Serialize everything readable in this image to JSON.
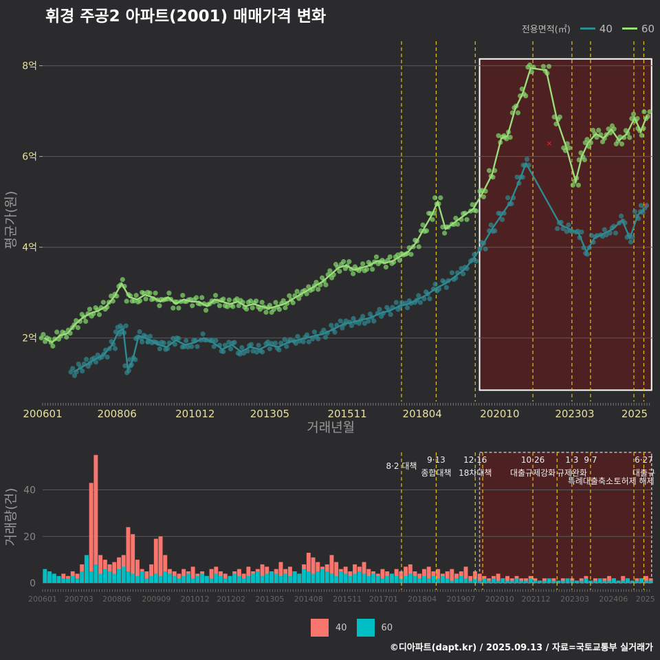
{
  "title": "휘경 주공2 아파트(2001) 매매가격 변화",
  "footer": "©디아파트(dapt.kr) / 2025.09.13 / 자료=국토교통부 실거래가",
  "legend_title": "전용면적(㎡)",
  "colors": {
    "series40_line": "#2f8a92",
    "series60_line": "#9cdc7a",
    "series40_point": "#2f8a92",
    "series60_point": "#86dc6e",
    "bar40": "#f8766d",
    "bar60": "#00bfc4",
    "policy_line": "#e8c21c",
    "grid": "#5a5a5a",
    "highlight_fill": "#5a1e1e",
    "highlight_border": "#ffffff"
  },
  "chart_data": [
    {
      "type": "line",
      "title": "휘경 주공2 아파트(2001) 매매가격 변화",
      "xlabel": "거래년월",
      "ylabel": "평균가(원)",
      "x_tick_labels": [
        "200601",
        "200806",
        "201012",
        "201305",
        "201511",
        "201804",
        "202010",
        "202303",
        "2025"
      ],
      "y_tick_labels": [
        "2억",
        "4억",
        "6억",
        "8억"
      ],
      "y_ticks": [
        2,
        4,
        6,
        8
      ],
      "ylim": [
        0.6,
        8.6
      ],
      "xlim": [
        2006.0,
        2025.7
      ],
      "y_unit": "억",
      "legend_placement": "top-right",
      "grid": true,
      "highlight_range": [
        2020.1,
        2025.65
      ],
      "policy_dates": [
        2017.58,
        2018.7,
        2019.96,
        2021.82,
        2023.08,
        2023.68,
        2025.08,
        2025.4
      ],
      "series": [
        {
          "name": "40",
          "x": [
            2007.0,
            2007.25,
            2007.5,
            2007.75,
            2008.0,
            2008.25,
            2008.45,
            2008.6,
            2008.75,
            2008.9,
            2009.1,
            2009.3,
            2009.5,
            2009.75,
            2010.0,
            2010.3,
            2010.6,
            2010.9,
            2011.2,
            2011.5,
            2011.8,
            2012.1,
            2012.4,
            2012.7,
            2013.0,
            2013.3,
            2013.6,
            2013.9,
            2014.2,
            2014.5,
            2014.8,
            2015.1,
            2015.4,
            2015.7,
            2016.0,
            2016.3,
            2016.6,
            2016.9,
            2017.2,
            2017.5,
            2017.8,
            2018.1,
            2018.4,
            2018.7,
            2019.0,
            2019.3,
            2019.6,
            2019.9,
            2020.2,
            2020.5,
            2020.8,
            2021.1,
            2021.4,
            2021.6,
            2022.7,
            2023.0,
            2023.3,
            2023.55,
            2023.8,
            2024.1,
            2024.4,
            2024.7,
            2024.95,
            2025.2,
            2025.4
          ],
          "values": [
            1.25,
            1.35,
            1.45,
            1.55,
            1.65,
            1.85,
            2.15,
            2.2,
            1.3,
            1.5,
            2.05,
            2.0,
            1.95,
            1.85,
            1.8,
            1.95,
            1.85,
            1.9,
            2.0,
            1.9,
            1.75,
            1.85,
            1.7,
            1.8,
            1.75,
            1.85,
            1.8,
            1.9,
            1.95,
            2.0,
            2.05,
            2.1,
            2.2,
            2.3,
            2.35,
            2.4,
            2.45,
            2.55,
            2.6,
            2.7,
            2.75,
            2.85,
            2.95,
            3.1,
            3.2,
            3.35,
            3.5,
            3.75,
            4.05,
            4.4,
            4.7,
            5.0,
            5.5,
            5.85,
            4.5,
            4.4,
            4.3,
            3.9,
            4.2,
            4.3,
            4.4,
            4.6,
            4.2,
            4.7,
            4.85
          ]
        },
        {
          "name": "60",
          "x": [
            2006.05,
            2006.3,
            2006.55,
            2006.8,
            2007.05,
            2007.3,
            2007.55,
            2007.8,
            2008.05,
            2008.3,
            2008.55,
            2008.8,
            2009.05,
            2009.3,
            2009.55,
            2009.8,
            2010.05,
            2010.3,
            2010.55,
            2010.8,
            2011.05,
            2011.3,
            2011.55,
            2011.8,
            2012.05,
            2012.3,
            2012.55,
            2012.8,
            2013.05,
            2013.3,
            2013.55,
            2013.8,
            2014.05,
            2014.3,
            2014.55,
            2014.8,
            2015.05,
            2015.3,
            2015.55,
            2015.8,
            2016.05,
            2016.3,
            2016.55,
            2016.8,
            2017.05,
            2017.3,
            2017.55,
            2017.8,
            2018.05,
            2018.3,
            2018.55,
            2018.75,
            2019.0,
            2019.3,
            2019.6,
            2019.9,
            2020.2,
            2020.5,
            2020.8,
            2021.0,
            2021.25,
            2021.5,
            2021.75,
            2022.25,
            2022.6,
            2022.9,
            2023.2,
            2023.4,
            2023.6,
            2023.85,
            2024.1,
            2024.35,
            2024.6,
            2024.85,
            2025.1,
            2025.3,
            2025.5
          ],
          "values": [
            2.0,
            1.9,
            2.05,
            2.1,
            2.3,
            2.45,
            2.55,
            2.6,
            2.7,
            2.9,
            3.2,
            2.9,
            2.85,
            2.95,
            2.9,
            2.8,
            2.9,
            2.75,
            2.85,
            2.8,
            2.8,
            2.7,
            2.85,
            2.8,
            2.75,
            2.8,
            2.7,
            2.75,
            2.7,
            2.65,
            2.7,
            2.75,
            2.85,
            2.95,
            3.05,
            3.15,
            3.25,
            3.4,
            3.55,
            3.6,
            3.5,
            3.55,
            3.6,
            3.7,
            3.65,
            3.7,
            3.8,
            3.9,
            4.1,
            4.4,
            4.7,
            5.0,
            4.4,
            4.55,
            4.7,
            4.85,
            5.2,
            5.6,
            6.4,
            6.45,
            7.05,
            7.4,
            7.95,
            7.9,
            6.8,
            6.2,
            5.45,
            6.0,
            6.3,
            6.5,
            6.4,
            6.6,
            6.35,
            6.5,
            6.85,
            6.55,
            6.9
          ]
        }
      ],
      "markers_x": [
        {
          "x": 2022.35,
          "y": 6.3
        },
        {
          "x": 2025.45,
          "y": 4.95
        }
      ]
    },
    {
      "type": "bar",
      "ylabel": "거래량(건)",
      "x_tick_labels": [
        "200601",
        "200703",
        "200806",
        "200909",
        "201012",
        "201202",
        "201305",
        "201408",
        "201511",
        "201701",
        "201804",
        "201907",
        "202010",
        "202112",
        "202303",
        "202406",
        "2025"
      ],
      "y_tick_labels": [
        "0",
        "20",
        "40"
      ],
      "y_ticks": [
        0,
        20,
        40
      ],
      "ylim": [
        0,
        57
      ],
      "xlim": [
        2006.0,
        2025.7
      ],
      "stacked": true,
      "highlight_range": [
        2020.1,
        2025.65
      ],
      "policy_dates": [
        2017.58,
        2018.7,
        2019.96,
        2020.2,
        2021.82,
        2022.6,
        2023.08,
        2023.68,
        2025.08,
        2025.4
      ],
      "policy_labels": [
        {
          "x": 2017.58,
          "line1": "",
          "line2": "8·2 대책"
        },
        {
          "x": 2018.7,
          "line1": "9·13",
          "line2": "종합대책"
        },
        {
          "x": 2019.96,
          "line1": "12·16",
          "line2": "18차대책"
        },
        {
          "x": 2021.82,
          "line1": "10·26",
          "line2": "대출규제강화"
        },
        {
          "x": 2023.08,
          "line1": "1·3",
          "line2": "규제완화"
        },
        {
          "x": 2023.68,
          "line1": "9·7",
          "line2": "특례대출축소"
        },
        {
          "x": 2025.08,
          "line1": "",
          "line2": "토허제 해제"
        },
        {
          "x": 2025.4,
          "line1": "6·27",
          "line2": "대출규"
        }
      ],
      "series": [
        {
          "name": "40",
          "values": [
            4,
            3,
            3,
            2,
            4,
            3,
            5,
            4,
            8,
            10,
            43,
            55,
            12,
            10,
            8,
            9,
            11,
            12,
            24,
            21,
            10,
            6,
            5,
            8,
            19,
            20,
            12,
            6,
            5,
            4,
            6,
            5,
            7,
            4,
            5,
            3,
            6,
            7,
            5,
            4,
            3,
            5,
            6,
            4,
            7,
            5,
            6,
            8,
            7,
            5,
            6,
            9,
            6,
            7,
            5,
            4,
            8,
            13,
            11,
            9,
            7,
            8,
            12,
            9,
            6,
            7,
            5,
            8,
            7,
            9,
            6,
            5,
            4,
            6,
            5,
            4,
            6,
            5,
            7,
            8,
            5,
            4,
            6,
            7,
            5,
            6,
            4,
            5,
            6,
            4,
            5,
            7,
            3,
            5,
            4,
            3,
            2,
            3,
            4,
            2,
            3,
            2,
            3,
            2,
            2,
            3,
            2,
            1,
            2,
            1,
            2,
            1,
            2,
            1,
            2,
            1,
            2,
            3,
            1,
            2,
            1,
            2,
            3,
            2,
            1,
            3,
            2,
            1,
            2,
            2,
            3,
            2
          ]
        },
        {
          "name": "60",
          "values": [
            6,
            5,
            4,
            3,
            2,
            2,
            3,
            2,
            5,
            12,
            5,
            8,
            4,
            6,
            5,
            4,
            6,
            7,
            5,
            4,
            3,
            5,
            2,
            3,
            4,
            3,
            5,
            4,
            3,
            2,
            3,
            4,
            2,
            3,
            4,
            3,
            2,
            4,
            3,
            2,
            3,
            4,
            3,
            2,
            3,
            4,
            5,
            3,
            4,
            5,
            4,
            3,
            4,
            3,
            5,
            4,
            6,
            5,
            4,
            5,
            6,
            5,
            4,
            3,
            5,
            4,
            3,
            4,
            5,
            4,
            3,
            4,
            3,
            2,
            3,
            4,
            3,
            2,
            3,
            4,
            3,
            2,
            3,
            2,
            3,
            2,
            3,
            2,
            1,
            2,
            3,
            2,
            1,
            2,
            1,
            2,
            1,
            2,
            1,
            2,
            1,
            1,
            2,
            1,
            1,
            2,
            1,
            1,
            1,
            2,
            1,
            1,
            1,
            2,
            1,
            1,
            1,
            2,
            1,
            1,
            2,
            1,
            1,
            2,
            1,
            1,
            2,
            1,
            1,
            2,
            1,
            1
          ]
        }
      ],
      "legend_placement": "bottom"
    }
  ]
}
